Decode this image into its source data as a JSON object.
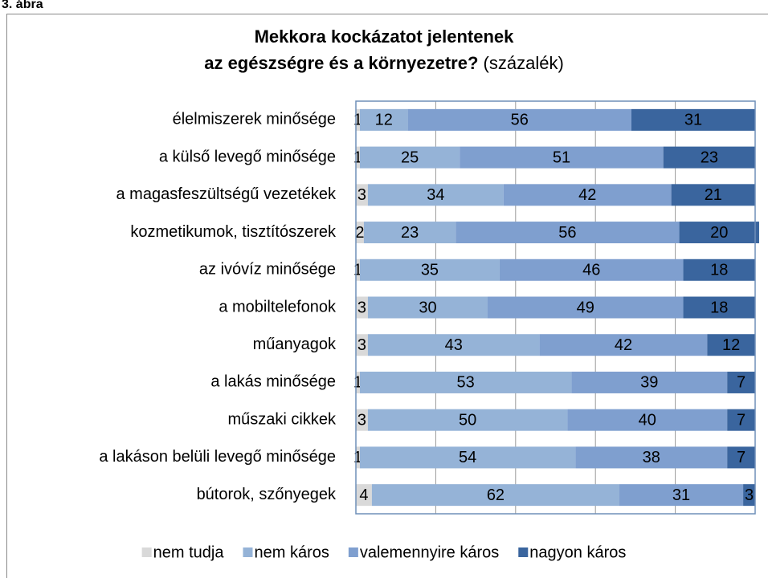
{
  "caption": "3. ábra",
  "chart_data": {
    "type": "stacked-barh",
    "title": [
      "Mekkora kockázatot jelentenek",
      "az egészségre és a környezetre?"
    ],
    "subtitle": "(százalék)",
    "categories": [
      "élelmiszerek minősége",
      "a külső levegő minősége",
      "a magasfeszültségű vezetékek",
      "kozmetikumok, tisztítószerek",
      "az ivóvíz minősége",
      "a mobiltelefonok",
      "műanyagok",
      "a lakás minősége",
      "műszaki cikkek",
      "a lakáson belüli levegő minősége",
      "bútorok, szőnyegek"
    ],
    "series": [
      {
        "name": "nem tudja",
        "color": "#d9d9d9",
        "label_color": "#000000",
        "values": [
          1,
          1,
          3,
          2,
          1,
          3,
          3,
          1,
          3,
          1,
          4
        ]
      },
      {
        "name": "nem káros",
        "color": "#95b3d7",
        "label_color": "#000000",
        "values": [
          12,
          25,
          34,
          23,
          35,
          30,
          43,
          53,
          50,
          54,
          62
        ]
      },
      {
        "name": "valemennyire káros",
        "color": "#7f9fcf",
        "label_color": "#000000",
        "values": [
          56,
          51,
          42,
          56,
          46,
          49,
          42,
          39,
          40,
          38,
          31
        ]
      },
      {
        "name": "nagyon káros",
        "color": "#3a659e",
        "label_color": "#ffffff",
        "values": [
          31,
          23,
          21,
          20,
          18,
          18,
          12,
          7,
          7,
          7,
          3
        ]
      }
    ],
    "xlim": [
      0,
      100
    ],
    "xticks": [
      0,
      20,
      40,
      60,
      80,
      100
    ],
    "grid": true,
    "legend": "bottom"
  }
}
